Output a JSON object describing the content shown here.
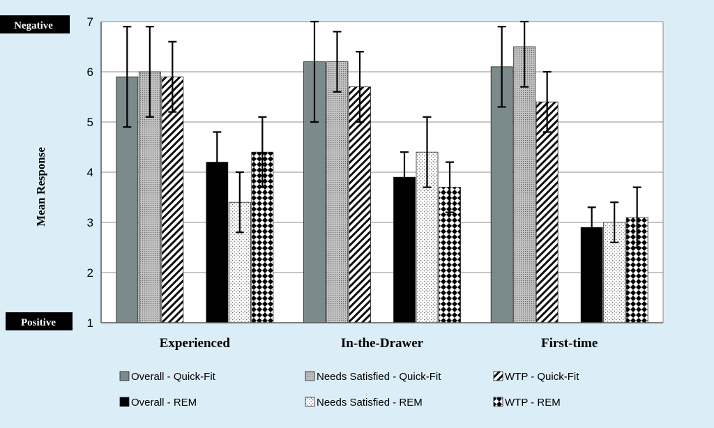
{
  "chart_data": {
    "type": "bar",
    "ylabel": "Mean Response",
    "ylim": [
      1,
      7
    ],
    "yticks": [
      1,
      2,
      3,
      4,
      5,
      6,
      7
    ],
    "grid": true,
    "top_label": "Negative",
    "bottom_label": "Positive",
    "categories": [
      "Experienced",
      "In-the-Drawer",
      "First-time"
    ],
    "legend_position": "bottom",
    "series": [
      {
        "name": "Overall - Quick-Fit",
        "fill": "#7b8a8a",
        "pattern": "solid",
        "values": [
          5.9,
          6.2,
          6.1
        ],
        "err_low": [
          4.9,
          5.0,
          5.3
        ],
        "err_high": [
          6.9,
          7.0,
          6.9
        ]
      },
      {
        "name": "Needs Satisfied - Quick-Fit",
        "fill": "#b8b8b8",
        "pattern": "fine-dots",
        "values": [
          6.0,
          6.2,
          6.5
        ],
        "err_low": [
          5.1,
          5.6,
          5.7
        ],
        "err_high": [
          6.9,
          6.8,
          7.0
        ]
      },
      {
        "name": "WTP - Quick-Fit",
        "fill": "#ffffff",
        "pattern": "diagonal",
        "values": [
          5.9,
          5.7,
          5.4
        ],
        "err_low": [
          5.2,
          5.0,
          4.8
        ],
        "err_high": [
          6.6,
          6.4,
          6.0
        ]
      },
      {
        "name": "Overall - REM",
        "fill": "#000000",
        "pattern": "solid",
        "values": [
          4.2,
          3.9,
          2.9
        ],
        "err_low": [
          3.6,
          3.4,
          2.5
        ],
        "err_high": [
          4.8,
          4.4,
          3.3
        ]
      },
      {
        "name": "Needs Satisfied - REM",
        "fill": "#ffffff",
        "pattern": "sparse-dots",
        "values": [
          3.4,
          4.4,
          3.0
        ],
        "err_low": [
          2.8,
          3.7,
          2.6
        ],
        "err_high": [
          4.0,
          5.1,
          3.4
        ]
      },
      {
        "name": "WTP - REM",
        "fill": "#ffffff",
        "pattern": "checker",
        "values": [
          4.4,
          3.7,
          3.1
        ],
        "err_low": [
          3.7,
          3.2,
          2.5
        ],
        "err_high": [
          5.1,
          4.2,
          3.7
        ]
      }
    ]
  }
}
